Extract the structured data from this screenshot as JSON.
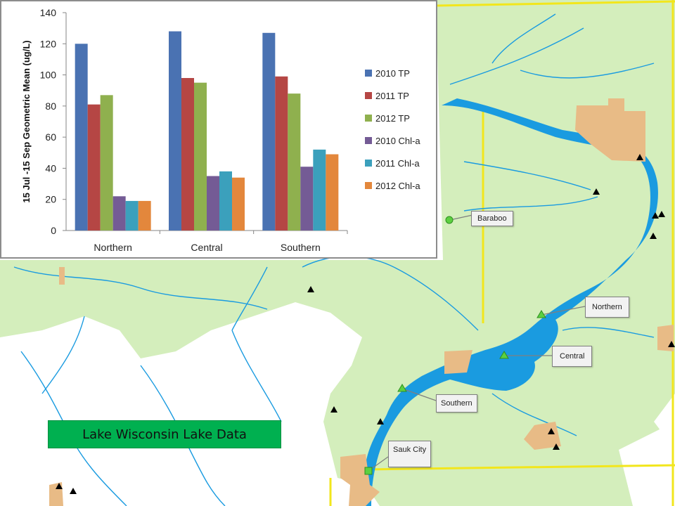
{
  "map": {
    "title": "Lake Wisconsin Lake Data",
    "labels": {
      "baraboo": "Baraboo",
      "northern": "Northern",
      "central": "Central",
      "southern": "Southern",
      "sauk_city": "Sauk City"
    },
    "colors": {
      "land": "#d4eebc",
      "water": "#1a9be0",
      "urban": "#e8bb86",
      "boundary": "#f2e61c",
      "title_bg": "#00b050",
      "site_marker": "#5cd040"
    }
  },
  "chart_data": {
    "type": "bar",
    "categories": [
      "Northern",
      "Central",
      "Southern"
    ],
    "series": [
      {
        "name": "2010 TP",
        "values": [
          120,
          128,
          127
        ],
        "color": "#4a72b2"
      },
      {
        "name": "2011 TP",
        "values": [
          81,
          98,
          99
        ],
        "color": "#b54644"
      },
      {
        "name": "2012 TP",
        "values": [
          87,
          95,
          88
        ],
        "color": "#8fb04e"
      },
      {
        "name": "2010 Chl-a",
        "values": [
          22,
          35,
          41
        ],
        "color": "#745b95"
      },
      {
        "name": "2011 Chl-a",
        "values": [
          19,
          38,
          52
        ],
        "color": "#3ba0bc"
      },
      {
        "name": "2012 Chl-a",
        "values": [
          19,
          34,
          49
        ],
        "color": "#e3873c"
      }
    ],
    "ylabel": "15 Jul -15 Sep Geometric Mean (ug/L)",
    "ylim": [
      0,
      140
    ],
    "yticks": [
      0,
      20,
      40,
      60,
      80,
      100,
      120,
      140
    ],
    "grid": false,
    "legend": "right"
  }
}
